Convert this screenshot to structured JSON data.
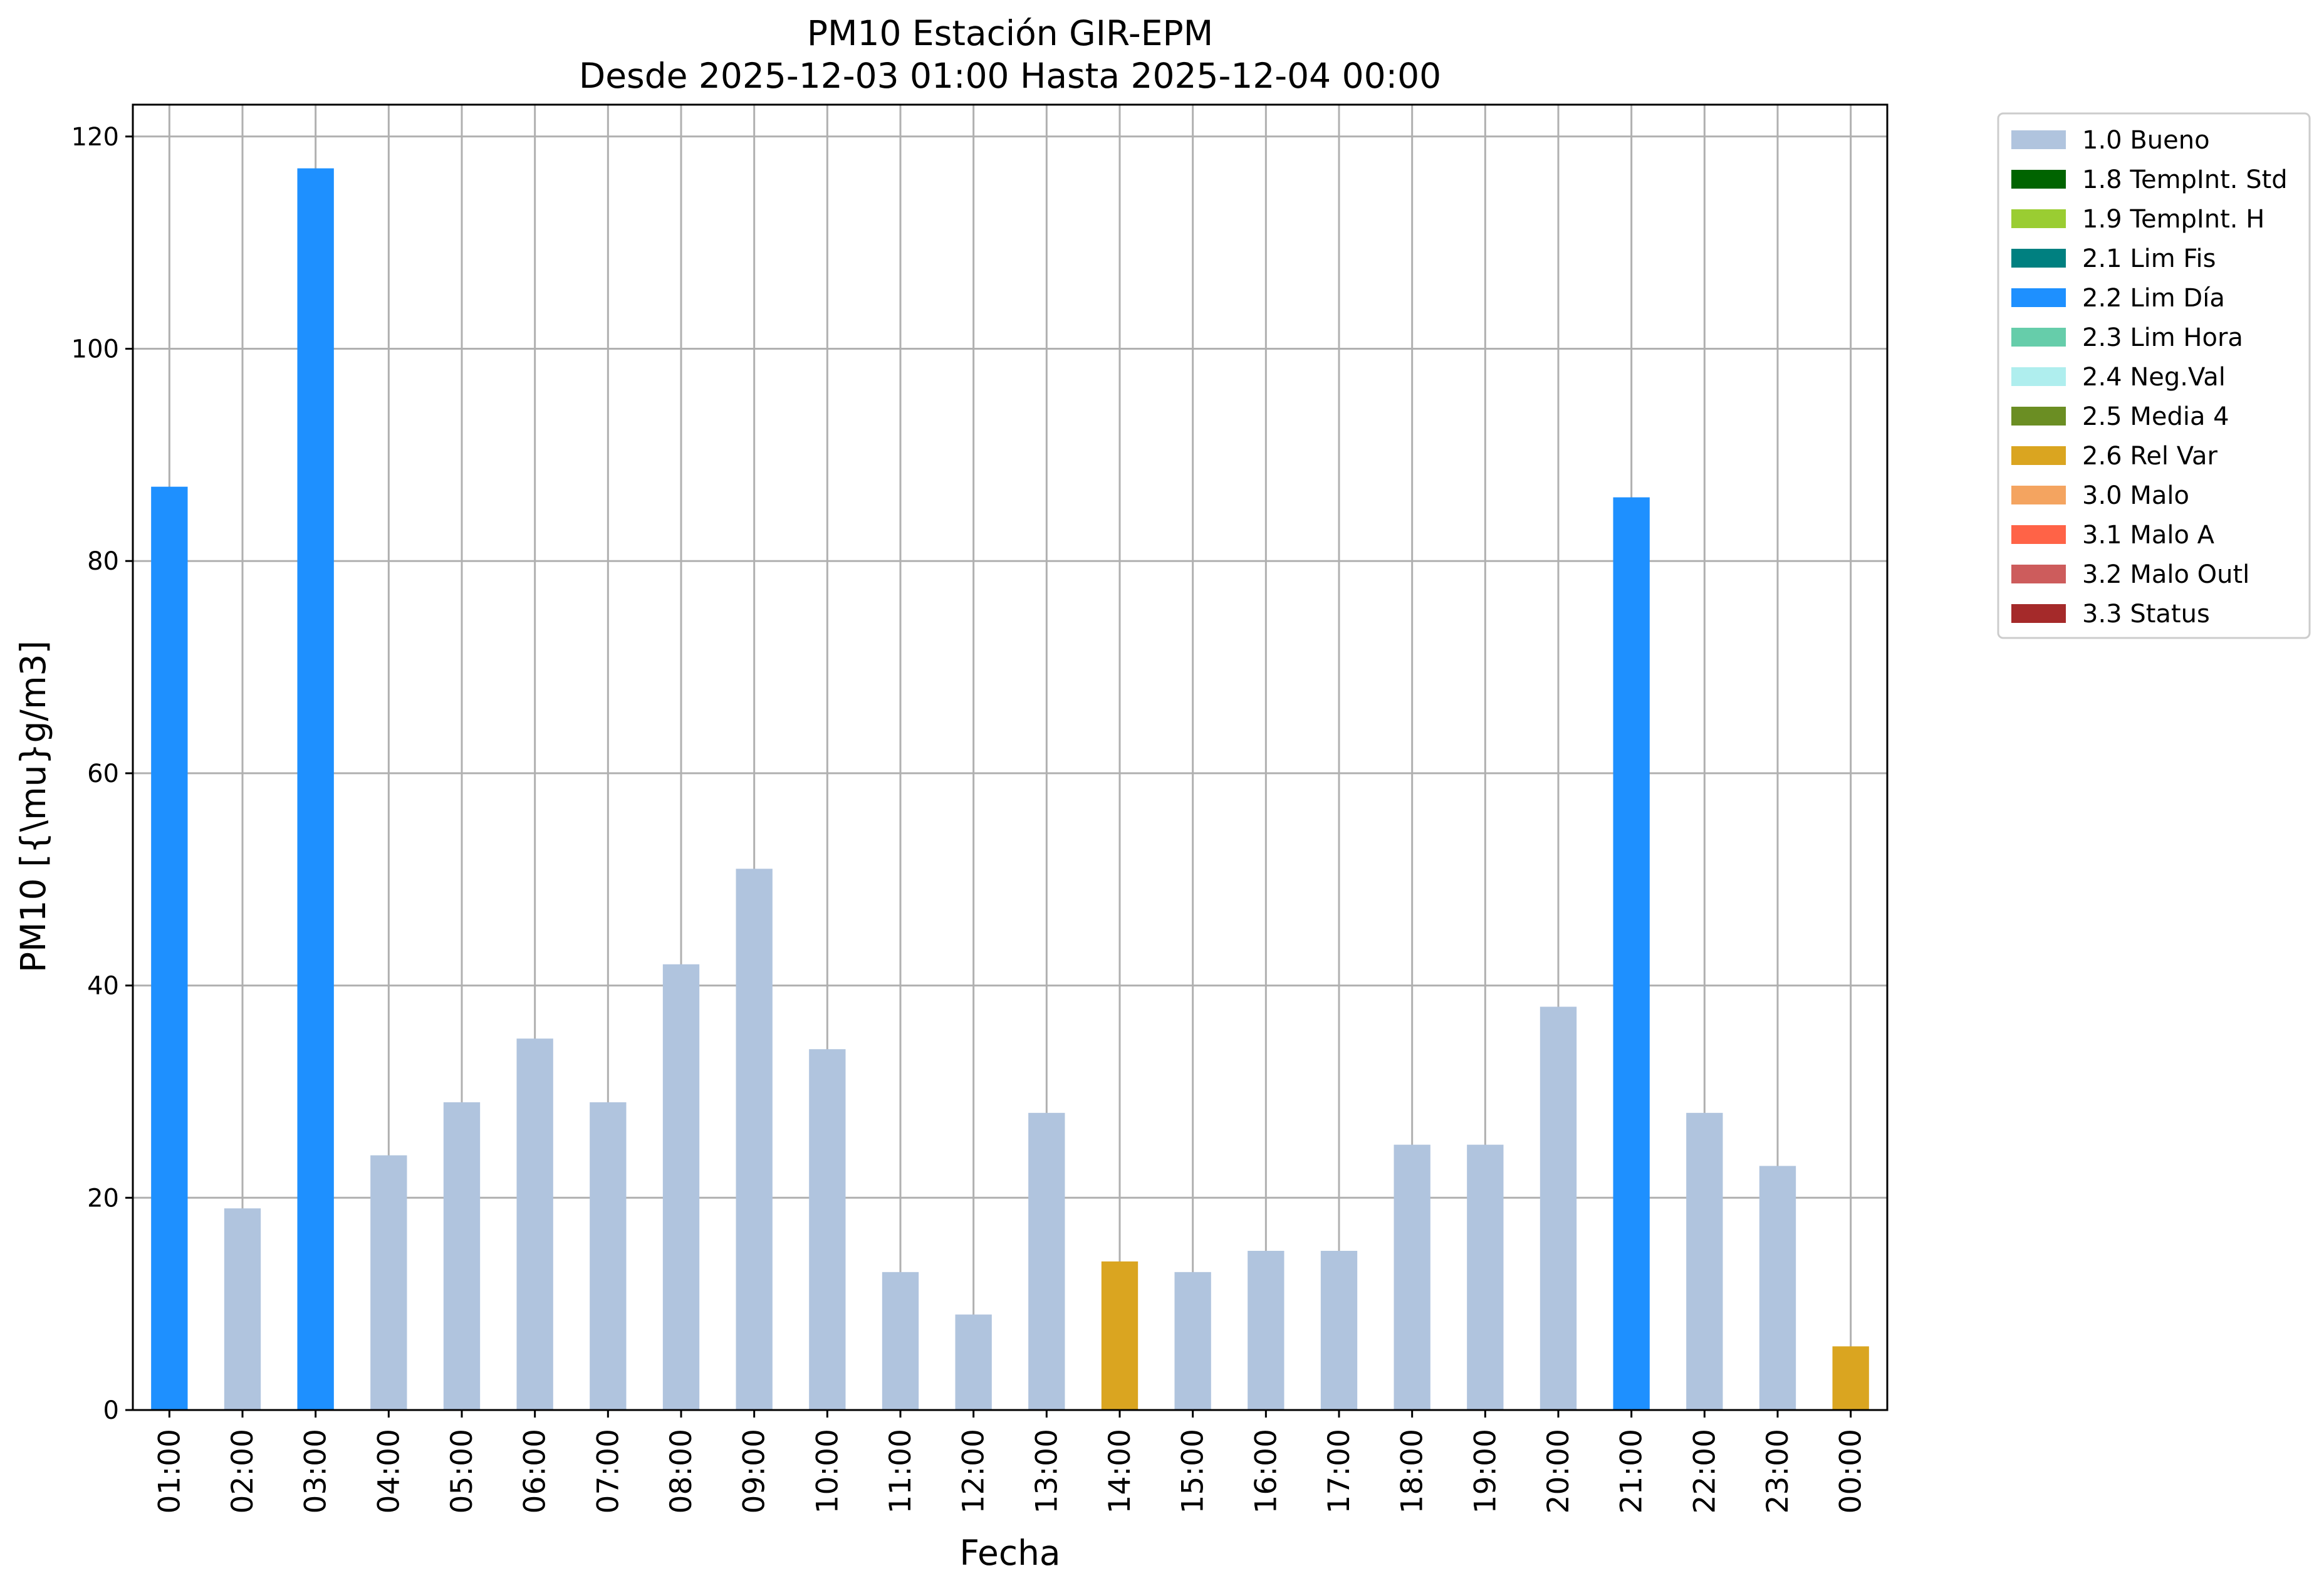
{
  "chart_data": {
    "type": "bar",
    "title": "PM10 Estación GIR-EPM",
    "subtitle": "Desde 2025-12-03 01:00 Hasta 2025-12-04 00:00",
    "xlabel": "Fecha",
    "ylabel": "PM10 [{\\mu}g/m3]",
    "ylim": [
      0,
      123
    ],
    "yticks": [
      0,
      20,
      40,
      60,
      80,
      100,
      120
    ],
    "grid": true,
    "legend_position": "outside-top-right",
    "categories": [
      "01:00",
      "02:00",
      "03:00",
      "04:00",
      "05:00",
      "06:00",
      "07:00",
      "08:00",
      "09:00",
      "10:00",
      "11:00",
      "12:00",
      "13:00",
      "14:00",
      "15:00",
      "16:00",
      "17:00",
      "18:00",
      "19:00",
      "20:00",
      "21:00",
      "22:00",
      "23:00",
      "00:00"
    ],
    "values": [
      87,
      19,
      117,
      24,
      29,
      35,
      29,
      42,
      51,
      34,
      13,
      9,
      28,
      14,
      13,
      15,
      15,
      25,
      25,
      38,
      86,
      28,
      23,
      6
    ],
    "flags": [
      "2.2 Lim Día",
      "1.0 Bueno",
      "2.2 Lim Día",
      "1.0 Bueno",
      "1.0 Bueno",
      "1.0 Bueno",
      "1.0 Bueno",
      "1.0 Bueno",
      "1.0 Bueno",
      "1.0 Bueno",
      "1.0 Bueno",
      "1.0 Bueno",
      "1.0 Bueno",
      "2.6 Rel Var",
      "1.0 Bueno",
      "1.0 Bueno",
      "1.0 Bueno",
      "1.0 Bueno",
      "1.0 Bueno",
      "1.0 Bueno",
      "2.2 Lim Día",
      "1.0 Bueno",
      "1.0 Bueno",
      "2.6 Rel Var"
    ],
    "legend": [
      {
        "label": "1.0 Bueno",
        "color": "#b0c4de"
      },
      {
        "label": "1.8 TempInt. Std",
        "color": "#006400"
      },
      {
        "label": "1.9 TempInt. H",
        "color": "#9acd32"
      },
      {
        "label": "2.1 Lim Fis",
        "color": "#008080"
      },
      {
        "label": "2.2 Lim Día",
        "color": "#1e90ff"
      },
      {
        "label": "2.3 Lim Hora",
        "color": "#66cdaa"
      },
      {
        "label": "2.4 Neg.Val",
        "color": "#afeeee"
      },
      {
        "label": "2.5 Media 4",
        "color": "#6b8e23"
      },
      {
        "label": "2.6 Rel Var",
        "color": "#daa520"
      },
      {
        "label": "3.0 Malo",
        "color": "#f4a460"
      },
      {
        "label": "3.1 Malo A",
        "color": "#ff6347"
      },
      {
        "label": "3.2 Malo Outl",
        "color": "#cd5c5c"
      },
      {
        "label": "3.3 Status",
        "color": "#a52a2a"
      }
    ]
  }
}
